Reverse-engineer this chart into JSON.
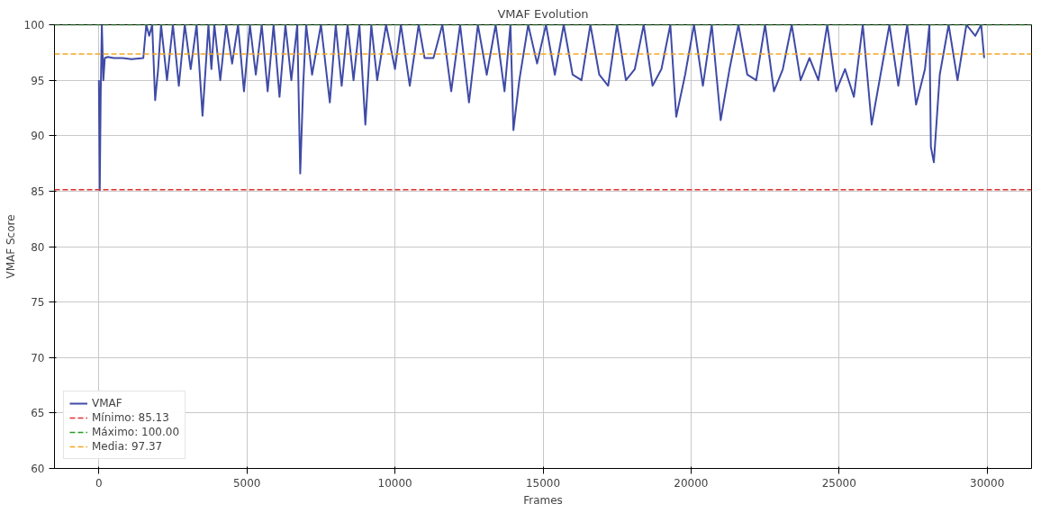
{
  "chart_data": {
    "type": "line",
    "title": "VMAF Evolution",
    "xlabel": "Frames",
    "ylabel": "VMAF Score",
    "xlim": [
      -1500,
      31500
    ],
    "xticks": [
      0,
      5000,
      10000,
      15000,
      20000,
      25000,
      30000
    ],
    "ylim": [
      60,
      100
    ],
    "yticks": [
      60,
      65,
      70,
      75,
      80,
      85,
      90,
      95,
      100
    ],
    "grid": true,
    "legend": "bottom left",
    "line_style": "solid",
    "series": [
      {
        "name": "VMAF",
        "color": "#3f4ba6",
        "x": [
          0,
          30,
          60,
          100,
          150,
          200,
          300,
          500,
          800,
          1100,
          1500,
          1600,
          1700,
          1800,
          1900,
          2000,
          2100,
          2300,
          2500,
          2700,
          2900,
          3100,
          3300,
          3500,
          3700,
          3800,
          3900,
          4100,
          4300,
          4500,
          4700,
          4900,
          5100,
          5300,
          5500,
          5700,
          5900,
          6100,
          6300,
          6500,
          6700,
          6800,
          6900,
          7000,
          7200,
          7500,
          7800,
          8000,
          8200,
          8400,
          8600,
          8800,
          9000,
          9200,
          9400,
          9700,
          10000,
          10200,
          10500,
          10800,
          11000,
          11300,
          11600,
          11900,
          12200,
          12500,
          12800,
          13100,
          13400,
          13700,
          13900,
          14000,
          14200,
          14500,
          14800,
          15100,
          15400,
          15700,
          16000,
          16300,
          16600,
          16900,
          17200,
          17500,
          17800,
          18100,
          18400,
          18700,
          19000,
          19300,
          19500,
          19800,
          20100,
          20400,
          20700,
          21000,
          21300,
          21600,
          21900,
          22200,
          22500,
          22800,
          23100,
          23400,
          23700,
          24000,
          24300,
          24600,
          24900,
          25200,
          25500,
          25800,
          26100,
          26400,
          26700,
          27000,
          27300,
          27600,
          27900,
          28050,
          28100,
          28200,
          28400,
          28700,
          29000,
          29300,
          29600,
          29800,
          29900
        ],
        "values": [
          95,
          85.1,
          93.5,
          100,
          95,
          97,
          97.1,
          97,
          97,
          96.9,
          97,
          100,
          99,
          100,
          93.2,
          96,
          100,
          95,
          100,
          94.5,
          100,
          96,
          100,
          91.8,
          100,
          96,
          100,
          95,
          100,
          96.5,
          100,
          94,
          100,
          95.5,
          100,
          94,
          100,
          93.5,
          100,
          95,
          100,
          86.6,
          94.5,
          100,
          95.5,
          100,
          93,
          100,
          94.5,
          100,
          95,
          100,
          91,
          100,
          95,
          100,
          96,
          100,
          94.5,
          100,
          97,
          97,
          100,
          94,
          100,
          93,
          100,
          95.5,
          100,
          94,
          100,
          90.5,
          95,
          100,
          96.5,
          100,
          95.5,
          100,
          95.5,
          95,
          100,
          95.5,
          94.5,
          100,
          95,
          96,
          100,
          94.5,
          96,
          100,
          91.7,
          95.5,
          100,
          94.5,
          100,
          91.4,
          96,
          100,
          95.5,
          95,
          100,
          94,
          96,
          100,
          95,
          97,
          95,
          100,
          94,
          96,
          93.5,
          100,
          91,
          95.5,
          100,
          94.5,
          100,
          92.8,
          96,
          100,
          89,
          87.6,
          95.5,
          100,
          95,
          100,
          99,
          100,
          97
        ]
      }
    ],
    "ref_lines": [
      {
        "axis": "y",
        "value": 85.13,
        "label": "Mínimo: 85.13",
        "color": "#e03131",
        "line_style": "dashed"
      },
      {
        "axis": "y",
        "value": 100,
        "label": "Máximo: 100.00",
        "color": "#2a9a2a",
        "line_style": "dashed"
      },
      {
        "axis": "y",
        "value": 97.37,
        "label": "Media: 97.37",
        "color": "#f5a623",
        "line_style": "dashed"
      }
    ]
  }
}
